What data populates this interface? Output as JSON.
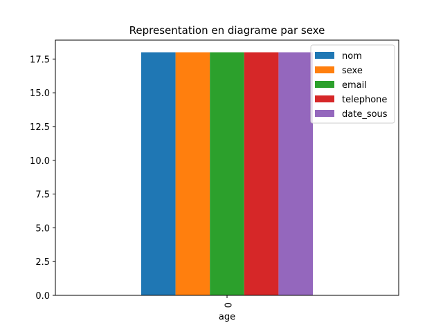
{
  "chart_data": {
    "type": "bar",
    "title": "Representation en diagrame par sexe",
    "xlabel": "age",
    "ylabel": "",
    "categories": [
      "0"
    ],
    "series": [
      {
        "name": "nom",
        "values": [
          18
        ],
        "color": "#1f77b4"
      },
      {
        "name": "sexe",
        "values": [
          18
        ],
        "color": "#ff7f0e"
      },
      {
        "name": "email",
        "values": [
          18
        ],
        "color": "#2ca02c"
      },
      {
        "name": "telephone",
        "values": [
          18
        ],
        "color": "#d62728"
      },
      {
        "name": "date_sous",
        "values": [
          18
        ],
        "color": "#9467bd"
      }
    ],
    "ylim": [
      0,
      18.9
    ],
    "yticks": [
      "0.0",
      "2.5",
      "5.0",
      "7.5",
      "10.0",
      "12.5",
      "15.0",
      "17.5"
    ],
    "grid": false,
    "legend_position": "top-right"
  }
}
